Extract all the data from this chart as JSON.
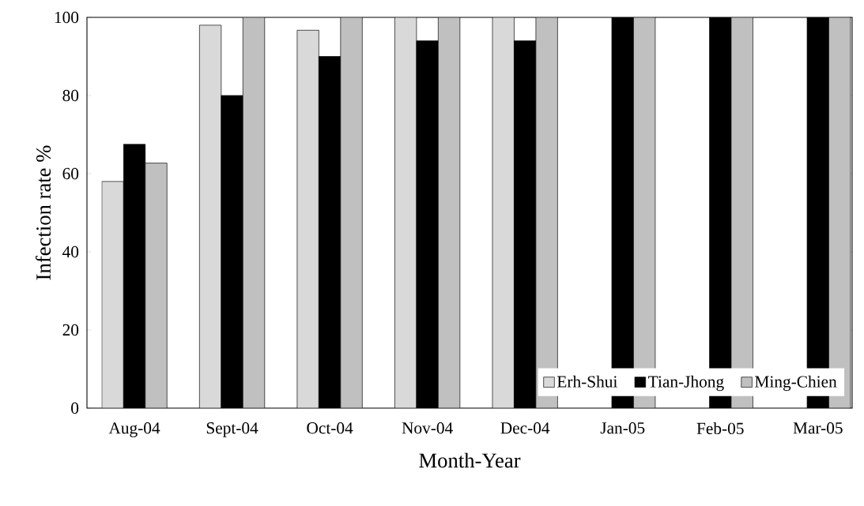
{
  "chart_data": {
    "type": "bar",
    "xlabel": "Month-Year",
    "ylabel": "Infection rate %",
    "categories": [
      "Aug-04",
      "Sept-04",
      "Oct-04",
      "Nov-04",
      "Dec-04",
      "Jan-05",
      "Feb-05",
      "Mar-05"
    ],
    "series": [
      {
        "name": "Erh-Shui",
        "color": "#d9d9d9",
        "values": [
          58,
          98,
          96.7,
          100,
          100,
          null,
          null,
          null
        ]
      },
      {
        "name": "Tian-Jhong",
        "color": "#000000",
        "values": [
          67.5,
          80,
          90,
          94,
          94,
          100,
          100,
          100
        ]
      },
      {
        "name": "Ming-Chien",
        "color": "#c0c0c0",
        "values": [
          62.7,
          100,
          100,
          100,
          100,
          100,
          100,
          100
        ]
      }
    ],
    "ylim": [
      0,
      100
    ],
    "yticks": [
      0,
      20,
      40,
      60,
      80,
      100
    ],
    "grid": false,
    "legend": "bottom right"
  }
}
